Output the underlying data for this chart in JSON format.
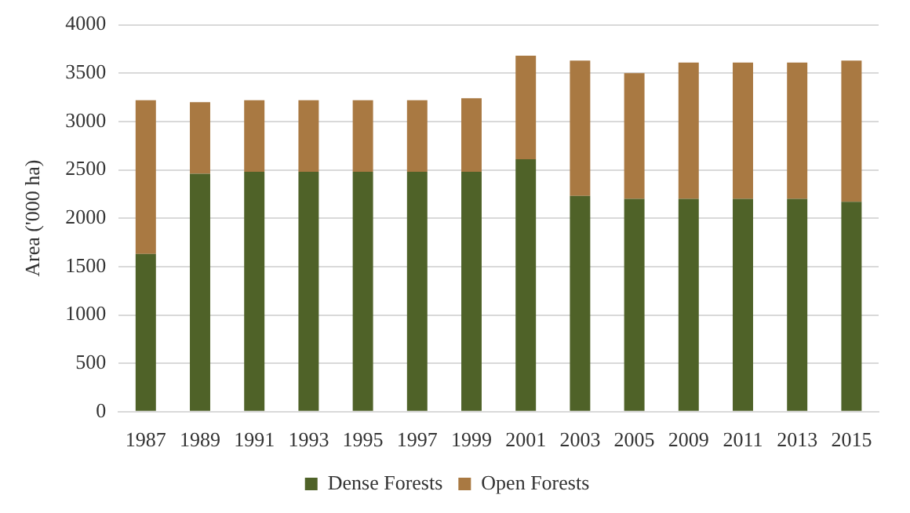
{
  "chart_data": {
    "type": "bar",
    "stacked": true,
    "ylabel": "Area ('000 ha)",
    "categories": [
      "1987",
      "1989",
      "1991",
      "1993",
      "1995",
      "1997",
      "1999",
      "2001",
      "2003",
      "2005",
      "2009",
      "2011",
      "2013",
      "2015"
    ],
    "series": [
      {
        "name": "Dense Forests",
        "color": "#4f6228",
        "values": [
          1630,
          2460,
          2480,
          2480,
          2480,
          2480,
          2480,
          2610,
          2230,
          2200,
          2200,
          2200,
          2200,
          2170
        ]
      },
      {
        "name": "Open Forests",
        "color": "#a97942",
        "values": [
          1590,
          740,
          740,
          740,
          740,
          740,
          760,
          1070,
          1400,
          1300,
          1410,
          1410,
          1410,
          1460
        ]
      }
    ],
    "ylim": [
      0,
      4000
    ],
    "yticks": [
      0,
      500,
      1000,
      1500,
      2000,
      2500,
      3000,
      3500,
      4000
    ],
    "grid": "y",
    "legend": "bottom"
  }
}
